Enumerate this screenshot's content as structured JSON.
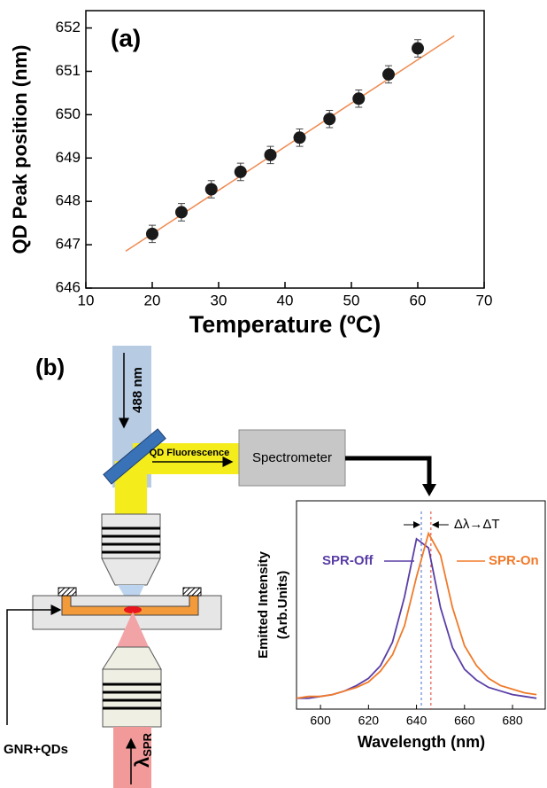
{
  "chart_data": [
    {
      "type": "scatter",
      "label": "(a)",
      "xlabel": "Temperature (ºC)",
      "ylabel": "QD Peak position (nm)",
      "x": [
        20,
        24.4,
        28.9,
        33.3,
        37.8,
        42.2,
        46.7,
        51.1,
        55.6,
        60
      ],
      "series": [
        {
          "type": "scatter",
          "color": "#1a1a1a",
          "values": [
            647.25,
            647.75,
            648.28,
            648.68,
            649.07,
            649.47,
            649.9,
            650.37,
            650.93,
            651.53
          ],
          "errors": [
            0.2,
            0.2,
            0.2,
            0.2,
            0.2,
            0.2,
            0.2,
            0.2,
            0.2,
            0.2
          ]
        },
        {
          "type": "line",
          "color": "#f08a50",
          "x": [
            16,
            65.5
          ],
          "values": [
            646.85,
            651.82
          ]
        }
      ],
      "xlim": [
        10,
        70
      ],
      "xticks": [
        10,
        20,
        30,
        40,
        50,
        60,
        70
      ],
      "ylim": [
        646,
        652.4
      ],
      "yticks": [
        646,
        647,
        648,
        649,
        650,
        651,
        652
      ]
    },
    {
      "type": "line",
      "xlabel": "Wavelength (nm)",
      "ylabel": [
        "Emitted Intensity",
        "(Arb.Units)"
      ],
      "x": [
        590,
        595,
        600,
        605,
        610,
        615,
        620,
        625,
        630,
        635,
        640,
        645,
        650,
        655,
        660,
        665,
        670,
        675,
        680,
        685,
        690
      ],
      "series": [
        {
          "name": "SPR-Off",
          "color": "#5a3ea6",
          "values": [
            0.06,
            0.06,
            0.07,
            0.08,
            0.1,
            0.13,
            0.17,
            0.24,
            0.37,
            0.62,
            0.94,
            0.89,
            0.56,
            0.34,
            0.22,
            0.16,
            0.12,
            0.1,
            0.08,
            0.07,
            0.06
          ]
        },
        {
          "name": "SPR-On",
          "color": "#f07a2a",
          "values": [
            0.06,
            0.07,
            0.07,
            0.08,
            0.1,
            0.12,
            0.15,
            0.21,
            0.3,
            0.46,
            0.73,
            0.97,
            0.85,
            0.56,
            0.35,
            0.24,
            0.17,
            0.13,
            0.11,
            0.09,
            0.08
          ]
        }
      ],
      "xlim": [
        590,
        694
      ],
      "xticks": [
        600,
        620,
        640,
        660,
        680
      ],
      "ylim": [
        0,
        1.15
      ],
      "vlines": [
        {
          "value": 642,
          "color": "#4a6ad0"
        },
        {
          "value": 646,
          "color": "#e03a2a"
        }
      ],
      "annotation": "Δλ→ΔT"
    }
  ],
  "diagram": {
    "label": "(b)",
    "excitation": "488 nm",
    "fluorescence": "QD Fluorescence",
    "spectrometer": "Spectrometer",
    "sample": "GNR+QDs",
    "spr_symbol": "λ",
    "spr_subscript": "SPR"
  }
}
